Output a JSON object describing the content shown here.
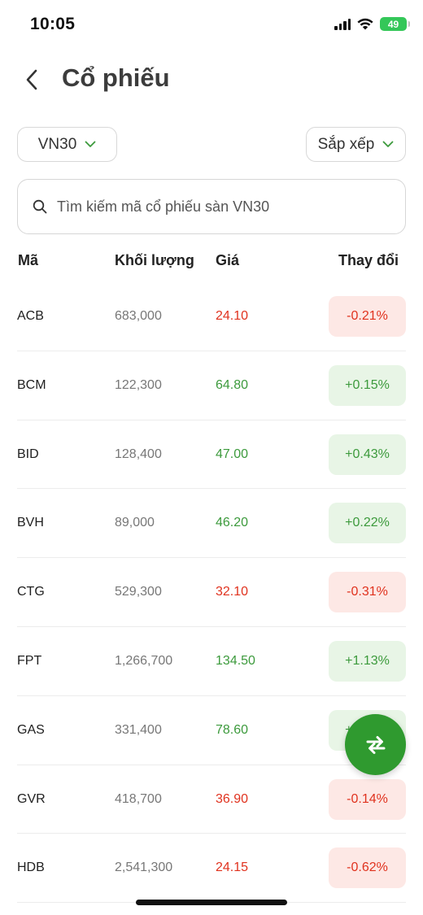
{
  "status_bar": {
    "time": "10:05",
    "battery": "49"
  },
  "header": {
    "title": "Cổ phiếu"
  },
  "filters": {
    "index_label": "VN30",
    "sort_label": "Sắp xếp"
  },
  "search": {
    "placeholder": "Tìm kiếm mã cổ phiếu sàn VN30"
  },
  "table": {
    "columns": {
      "symbol": "Mã",
      "volume": "Khối lượng",
      "price": "Giá",
      "change": "Thay đổi"
    },
    "rows": [
      {
        "symbol": "ACB",
        "volume": "683,000",
        "price": "24.10",
        "change": "-0.21%",
        "direction": "down"
      },
      {
        "symbol": "BCM",
        "volume": "122,300",
        "price": "64.80",
        "change": "+0.15%",
        "direction": "up"
      },
      {
        "symbol": "BID",
        "volume": "128,400",
        "price": "47.00",
        "change": "+0.43%",
        "direction": "up"
      },
      {
        "symbol": "BVH",
        "volume": "89,000",
        "price": "46.20",
        "change": "+0.22%",
        "direction": "up"
      },
      {
        "symbol": "CTG",
        "volume": "529,300",
        "price": "32.10",
        "change": "-0.31%",
        "direction": "down"
      },
      {
        "symbol": "FPT",
        "volume": "1,266,700",
        "price": "134.50",
        "change": "+1.13%",
        "direction": "up"
      },
      {
        "symbol": "GAS",
        "volume": "331,400",
        "price": "78.60",
        "change": "+0.26%",
        "direction": "up"
      },
      {
        "symbol": "GVR",
        "volume": "418,700",
        "price": "36.90",
        "change": "-0.14%",
        "direction": "down"
      },
      {
        "symbol": "HDB",
        "volume": "2,541,300",
        "price": "24.15",
        "change": "-0.62%",
        "direction": "down"
      }
    ]
  },
  "colors": {
    "up": "#3c9a3c",
    "down": "#e0321e",
    "accent": "#2f9a2f"
  },
  "icons": {
    "back": "chevron-left-icon",
    "dropdown": "chevron-down-icon",
    "search": "search-icon",
    "fab": "swap-icon"
  }
}
